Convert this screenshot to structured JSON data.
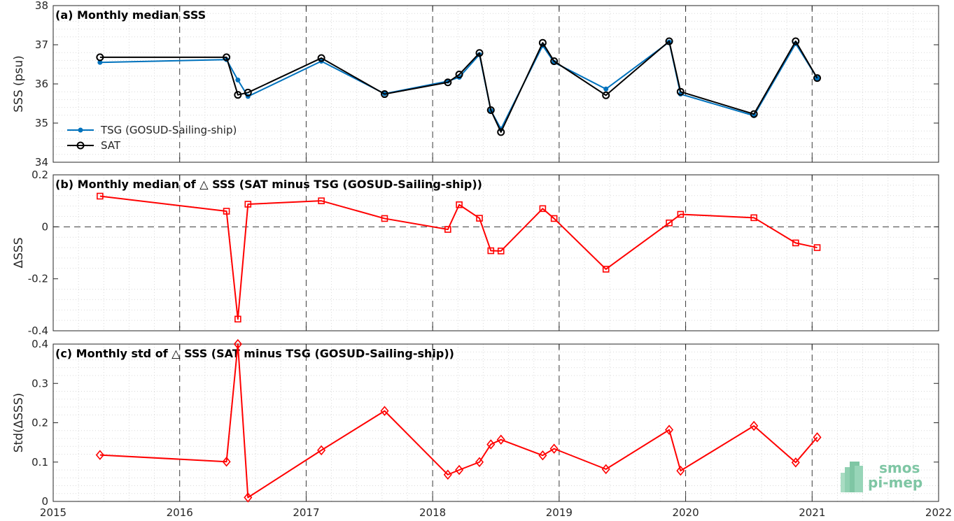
{
  "chart_data": [
    {
      "type": "line",
      "title": "(a) Monthly median SSS",
      "ylabel": "SSS (psu)",
      "xlim": [
        2015,
        2022
      ],
      "ylim": [
        34,
        38
      ],
      "yticks": [
        "34",
        "35",
        "36",
        "37",
        "38"
      ],
      "grid": true,
      "legend_position": "bottom-left",
      "series": [
        {
          "name": "TSG (GOSUD-Sailing-ship)",
          "color": "#0072bd",
          "marker": "dot",
          "x": [
            2015.37,
            2016.37,
            2016.46,
            2016.54,
            2017.12,
            2017.62,
            2018.12,
            2018.21,
            2018.37,
            2018.46,
            2018.54,
            2018.87,
            2018.96,
            2019.37,
            2019.87,
            2019.96,
            2020.54,
            2020.87,
            2021.04
          ],
          "y": [
            36.55,
            36.62,
            36.1,
            35.68,
            36.58,
            35.75,
            36.07,
            36.17,
            36.75,
            35.32,
            34.85,
            36.98,
            36.55,
            35.87,
            37.07,
            35.74,
            35.19,
            37.03,
            36.15
          ]
        },
        {
          "name": "SAT",
          "color": "#000000",
          "marker": "circle",
          "x": [
            2015.37,
            2016.37,
            2016.46,
            2016.54,
            2017.12,
            2017.62,
            2018.12,
            2018.21,
            2018.37,
            2018.46,
            2018.54,
            2018.87,
            2018.96,
            2019.37,
            2019.87,
            2019.96,
            2020.54,
            2020.87,
            2021.04
          ],
          "y": [
            36.68,
            36.68,
            35.72,
            35.78,
            36.66,
            35.74,
            36.04,
            36.24,
            36.79,
            35.33,
            34.77,
            37.05,
            36.58,
            35.71,
            37.09,
            35.8,
            35.23,
            37.09,
            36.15
          ]
        }
      ]
    },
    {
      "type": "line",
      "title": "(b) Monthly median of △ SSS (SAT minus TSG (GOSUD-Sailing-ship))",
      "ylabel": "ΔSSS",
      "xlim": [
        2015,
        2022
      ],
      "ylim": [
        -0.4,
        0.2
      ],
      "yticks": [
        "-0.4",
        "-0.2",
        "0",
        "0.2"
      ],
      "grid": true,
      "zero_line": true,
      "series": [
        {
          "color": "#ff0000",
          "marker": "square",
          "x": [
            2015.37,
            2016.37,
            2016.46,
            2016.54,
            2017.12,
            2017.62,
            2018.12,
            2018.21,
            2018.37,
            2018.46,
            2018.54,
            2018.87,
            2018.96,
            2019.37,
            2019.87,
            2019.96,
            2020.54,
            2020.87,
            2021.04
          ],
          "y": [
            0.118,
            0.06,
            -0.355,
            0.087,
            0.1,
            0.032,
            -0.01,
            0.085,
            0.033,
            -0.092,
            -0.093,
            0.07,
            0.032,
            -0.163,
            0.015,
            0.048,
            0.035,
            -0.062,
            -0.08
          ]
        }
      ]
    },
    {
      "type": "line",
      "title": "(c) Monthly std of △ SSS (SAT minus TSG (GOSUD-Sailing-ship))",
      "ylabel": "Std(ΔSSS)",
      "xlabel": "",
      "xlim": [
        2015,
        2022
      ],
      "xticks": [
        "2015",
        "2016",
        "2017",
        "2018",
        "2019",
        "2020",
        "2021",
        "2022"
      ],
      "ylim": [
        0,
        0.4
      ],
      "yticks": [
        "0",
        "0.1",
        "0.2",
        "0.3",
        "0.4"
      ],
      "grid": true,
      "series": [
        {
          "color": "#ff0000",
          "marker": "diamond",
          "x": [
            2015.37,
            2016.37,
            2016.46,
            2016.54,
            2017.12,
            2017.62,
            2018.12,
            2018.21,
            2018.37,
            2018.46,
            2018.54,
            2018.87,
            2018.96,
            2019.37,
            2019.87,
            2019.96,
            2020.54,
            2020.87,
            2021.04
          ],
          "y": [
            0.118,
            0.101,
            0.4,
            0.01,
            0.13,
            0.23,
            0.068,
            0.08,
            0.1,
            0.145,
            0.157,
            0.117,
            0.134,
            0.082,
            0.182,
            0.078,
            0.192,
            0.099,
            0.163
          ]
        }
      ]
    }
  ],
  "logo": {
    "line1": "smos",
    "line2": "pi-mep",
    "color": "#7fc6a4"
  }
}
